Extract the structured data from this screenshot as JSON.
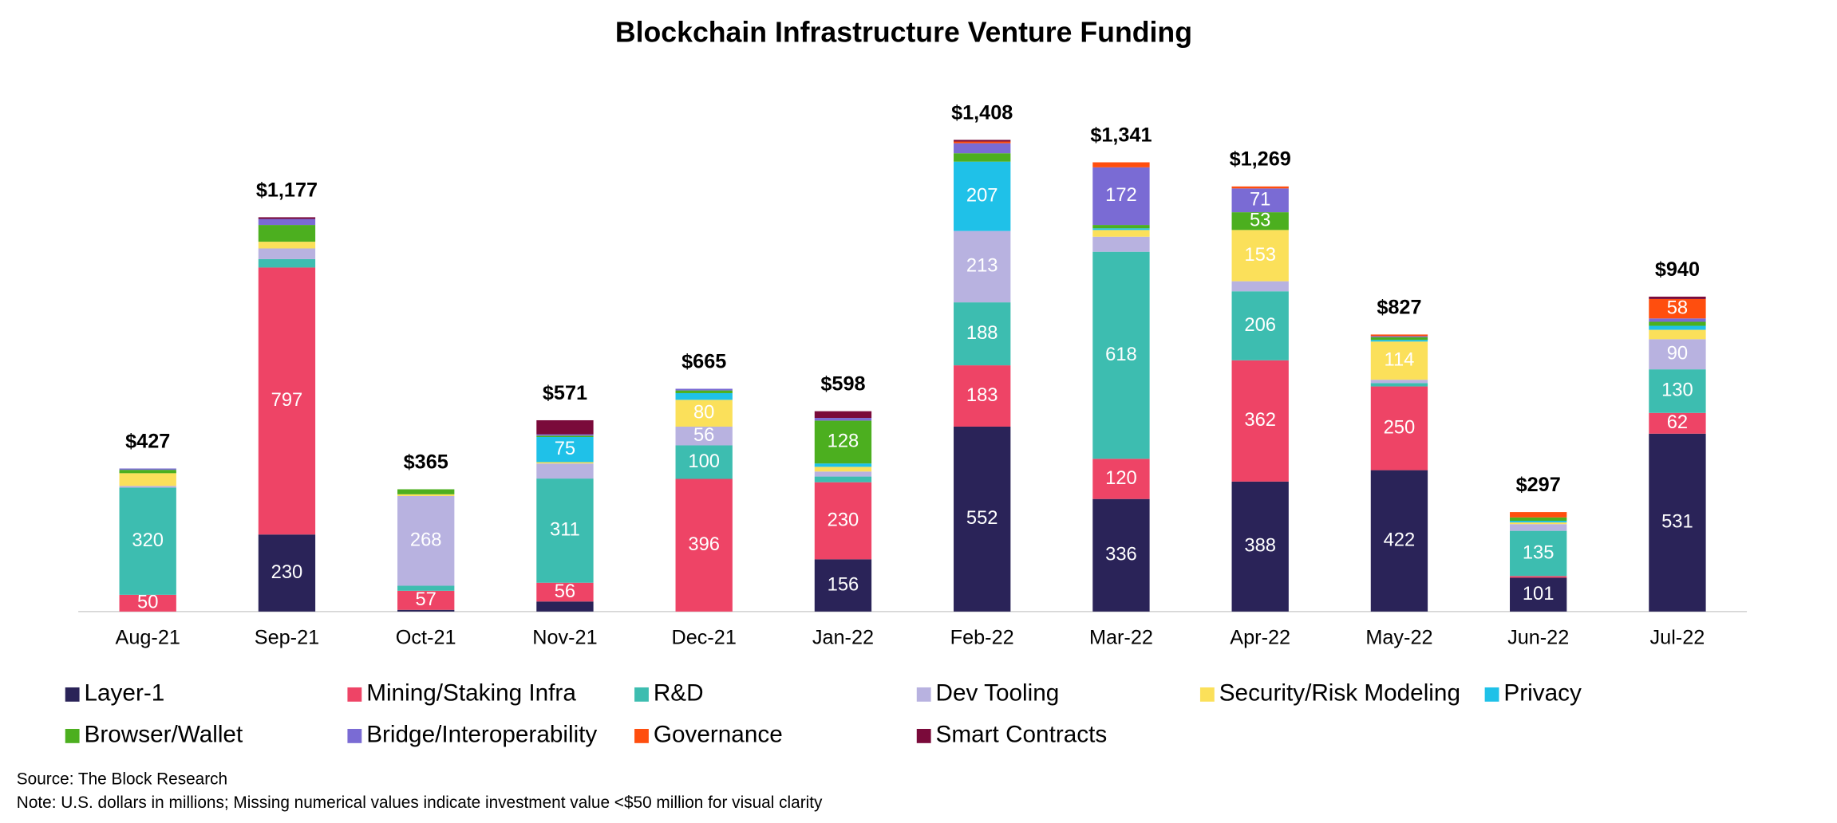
{
  "chart_data": {
    "type": "stacked_bar",
    "title": "Blockchain Infrastructure Venture Funding",
    "categories": [
      "Aug-21",
      "Sep-21",
      "Oct-21",
      "Nov-21",
      "Dec-21",
      "Jan-22",
      "Feb-22",
      "Mar-22",
      "Apr-22",
      "May-22",
      "Jun-22",
      "Jul-22"
    ],
    "totals": [
      427,
      1177,
      365,
      571,
      665,
      598,
      1408,
      1341,
      1269,
      827,
      297,
      940
    ],
    "total_labels": [
      "$427",
      "$1,177",
      "$365",
      "$571",
      "$665",
      "$598",
      "$1,408",
      "$1,341",
      "$1,269",
      "$827",
      "$297",
      "$940"
    ],
    "series": [
      {
        "name": "Layer-1",
        "color": "#2a2358",
        "values": [
          0,
          230,
          5,
          30,
          0,
          156,
          552,
          336,
          388,
          422,
          101,
          531
        ],
        "value_labels": [
          null,
          "230",
          null,
          null,
          null,
          "156",
          "552",
          "336",
          "388",
          "422",
          "101",
          "531"
        ]
      },
      {
        "name": "Mining/Staking Infra",
        "color": "#ee4466",
        "values": [
          50,
          797,
          57,
          56,
          396,
          230,
          183,
          120,
          362,
          250,
          5,
          62
        ],
        "value_labels": [
          "50",
          "797",
          "57",
          "56",
          "396",
          "230",
          "183",
          "120",
          "362",
          "250",
          null,
          "62"
        ]
      },
      {
        "name": "R&D",
        "color": "#3dbdb0",
        "values": [
          320,
          25,
          15,
          311,
          100,
          17,
          188,
          618,
          206,
          10,
          135,
          130
        ],
        "value_labels": [
          "320",
          null,
          null,
          "311",
          "100",
          null,
          "188",
          "618",
          "206",
          null,
          "135",
          "130"
        ]
      },
      {
        "name": "Dev Tooling",
        "color": "#b8b2e0",
        "values": [
          5,
          32,
          268,
          45,
          56,
          15,
          213,
          45,
          30,
          10,
          20,
          90
        ],
        "value_labels": [
          null,
          null,
          "268",
          null,
          "56",
          null,
          "213",
          null,
          null,
          null,
          null,
          "90"
        ]
      },
      {
        "name": "Security/Risk Modeling",
        "color": "#fbe05a",
        "values": [
          38,
          20,
          5,
          4,
          80,
          14,
          0,
          20,
          153,
          114,
          5,
          28
        ],
        "value_labels": [
          null,
          null,
          null,
          null,
          "80",
          null,
          null,
          null,
          "153",
          "114",
          null,
          null
        ]
      },
      {
        "name": "Privacy",
        "color": "#1fc1e8",
        "values": [
          0,
          0,
          0,
          75,
          20,
          10,
          207,
          5,
          0,
          5,
          5,
          12
        ],
        "value_labels": [
          null,
          null,
          null,
          "75",
          null,
          null,
          "207",
          null,
          null,
          null,
          null,
          null
        ]
      },
      {
        "name": "Browser/Wallet",
        "color": "#4caf1f",
        "values": [
          10,
          50,
          15,
          4,
          8,
          128,
          25,
          10,
          53,
          8,
          10,
          12
        ],
        "value_labels": [
          null,
          null,
          null,
          null,
          null,
          "128",
          null,
          null,
          "53",
          null,
          null,
          null
        ]
      },
      {
        "name": "Bridge/Interoperability",
        "color": "#7a6bd4",
        "values": [
          4,
          18,
          0,
          4,
          5,
          8,
          30,
          172,
          71,
          3,
          0,
          10
        ],
        "value_labels": [
          null,
          null,
          null,
          null,
          null,
          null,
          null,
          "172",
          "71",
          null,
          null,
          null
        ]
      },
      {
        "name": "Governance",
        "color": "#ff4e0e",
        "values": [
          0,
          0,
          0,
          0,
          0,
          0,
          5,
          15,
          6,
          5,
          16,
          58
        ],
        "value_labels": [
          null,
          null,
          null,
          null,
          null,
          null,
          null,
          null,
          null,
          null,
          null,
          "58"
        ]
      },
      {
        "name": "Smart Contracts",
        "color": "#7a0a3a",
        "values": [
          0,
          5,
          0,
          42,
          0,
          20,
          5,
          0,
          0,
          0,
          0,
          7
        ],
        "value_labels": [
          null,
          null,
          null,
          null,
          null,
          null,
          null,
          null,
          null,
          null,
          null,
          null
        ]
      }
    ],
    "source": "Source: The Block Research",
    "note": "Note: U.S. dollars in millions; Missing numerical values indicate investment value <$50 million for visual clarity"
  }
}
